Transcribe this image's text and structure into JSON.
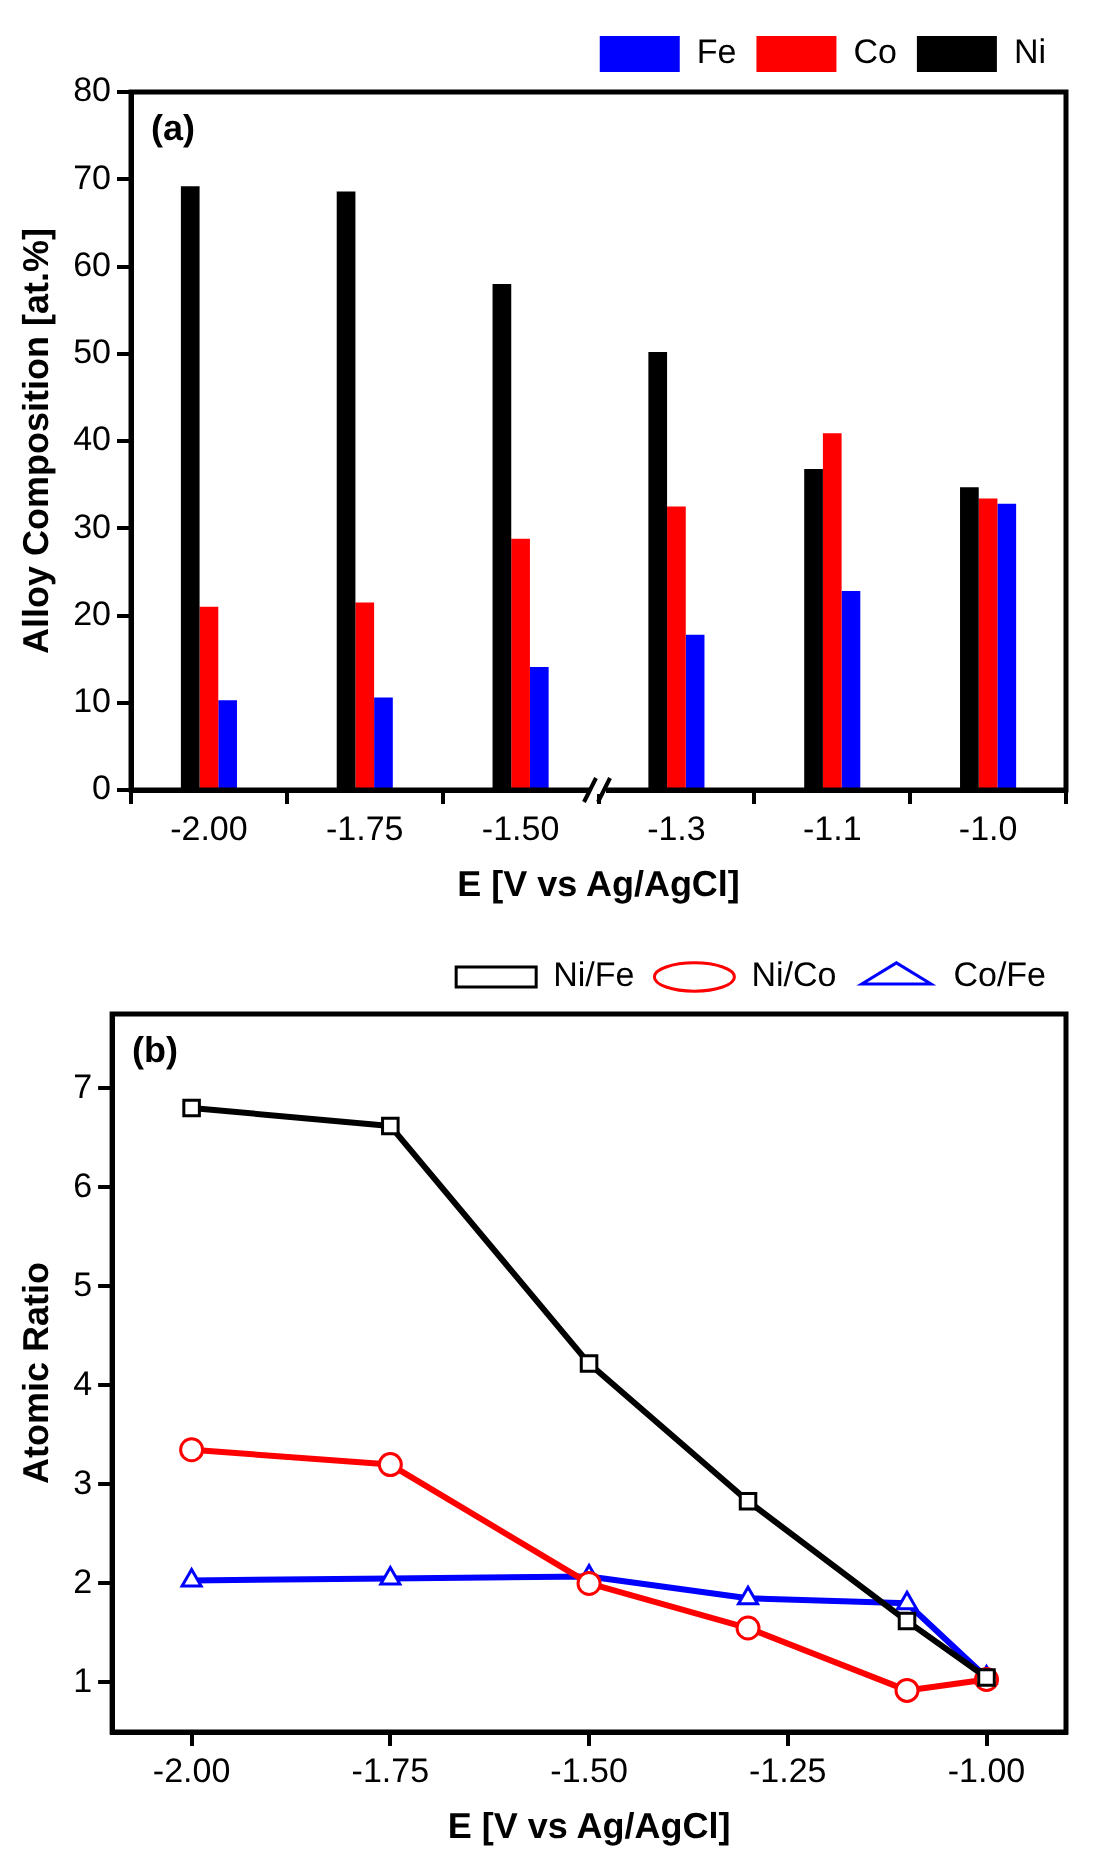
{
  "chart_data": [
    {
      "type": "bar",
      "ylabel": "Alloy Composition [at.%]",
      "xlabel": "E [V vs Ag/AgCl]",
      "categories": [
        "-2.00",
        "-1.75",
        "-1.50",
        "-1.3",
        "-1.1",
        "-1.0"
      ],
      "series": [
        {
          "name": "Ni",
          "color": "#000000",
          "values": [
            69.2,
            68.6,
            58.0,
            50.2,
            36.8,
            34.7
          ]
        },
        {
          "name": "Co",
          "color": "#ff0000",
          "values": [
            21.0,
            21.5,
            28.8,
            32.5,
            40.9,
            33.4
          ]
        },
        {
          "name": "Fe",
          "color": "#0000ff",
          "values": [
            10.3,
            10.6,
            14.1,
            17.8,
            22.8,
            32.8
          ]
        }
      ],
      "ylim": [
        0,
        80
      ],
      "yticks": [
        0,
        10,
        20,
        30,
        40,
        50,
        60,
        70,
        80
      ],
      "grid": false,
      "legend": "top right",
      "annotations": [
        "(a)"
      ]
    },
    {
      "type": "line",
      "ylabel": "Atomic Ratio",
      "xlabel": "E [V vs Ag/AgCl]",
      "x": [
        -2.0,
        -1.75,
        -1.5,
        -1.3,
        -1.1,
        -1.0
      ],
      "series": [
        {
          "name": "Ni/Fe",
          "color": "#000000",
          "marker": "square",
          "values": [
            6.8,
            6.62,
            4.22,
            2.83,
            1.62,
            1.05
          ]
        },
        {
          "name": "Ni/Co",
          "color": "#ff0000",
          "marker": "circle",
          "values": [
            3.35,
            3.2,
            2.0,
            1.55,
            0.92,
            1.03
          ]
        },
        {
          "name": "Co/Fe",
          "color": "#0000ff",
          "marker": "triangle",
          "values": [
            2.03,
            2.05,
            2.07,
            1.85,
            1.8,
            1.05
          ]
        }
      ],
      "xlim": [
        -2.1,
        -0.9
      ],
      "xticks": [
        {
          "value": -2.0,
          "label": "-2.00"
        },
        {
          "value": -1.75,
          "label": "-1.75"
        },
        {
          "value": -1.5,
          "label": "-1.50"
        },
        {
          "value": -1.25,
          "label": "-1.25"
        },
        {
          "value": -1.0,
          "label": "-1.00"
        }
      ],
      "ylim": [
        0.5,
        7.75
      ],
      "yticks": [
        1,
        2,
        3,
        4,
        5,
        6,
        7
      ],
      "grid": false,
      "legend": "top right",
      "line_style": "solid",
      "annotations": [
        "(b)"
      ]
    }
  ]
}
